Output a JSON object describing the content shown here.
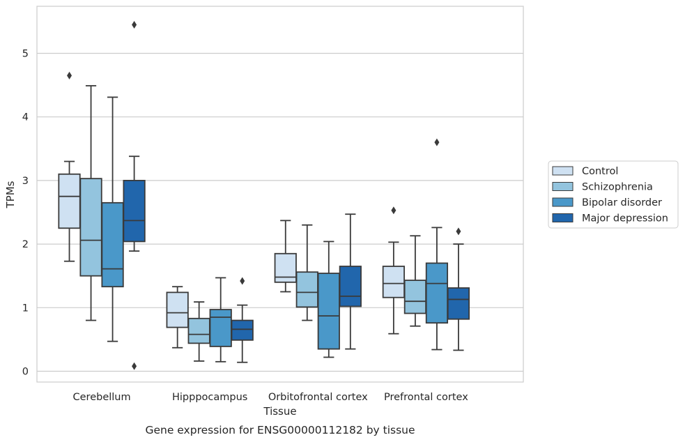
{
  "chart_data": {
    "type": "boxplot",
    "caption": "Gene expression for ENSG00000112182 by tissue",
    "xlabel": "Tissue",
    "ylabel": "TPMs",
    "ylim": [
      -0.17,
      5.74
    ],
    "yticks": [
      0,
      1,
      2,
      3,
      4,
      5
    ],
    "grid": "horizontal",
    "legend_placement": "right",
    "categories": [
      "Cerebellum",
      "Hipppocampus",
      "Orbitofrontal cortex",
      "Prefrontal cortex"
    ],
    "series": [
      {
        "name": "Control",
        "color": "#cfe1f2",
        "boxes": [
          {
            "whislo": 1.73,
            "q1": 2.25,
            "med": 2.75,
            "q3": 3.1,
            "whishi": 3.3,
            "fliers": [
              4.65
            ]
          },
          {
            "whislo": 0.37,
            "q1": 0.69,
            "med": 0.92,
            "q3": 1.24,
            "whishi": 1.33,
            "fliers": []
          },
          {
            "whislo": 1.25,
            "q1": 1.4,
            "med": 1.48,
            "q3": 1.85,
            "whishi": 2.37,
            "fliers": []
          },
          {
            "whislo": 0.59,
            "q1": 1.16,
            "med": 1.38,
            "q3": 1.65,
            "whishi": 2.03,
            "fliers": [
              2.53
            ]
          }
        ]
      },
      {
        "name": "Schizophrenia",
        "color": "#93c4de",
        "boxes": [
          {
            "whislo": 0.8,
            "q1": 1.5,
            "med": 2.06,
            "q3": 3.03,
            "whishi": 4.49,
            "fliers": []
          },
          {
            "whislo": 0.16,
            "q1": 0.44,
            "med": 0.58,
            "q3": 0.83,
            "whishi": 1.09,
            "fliers": []
          },
          {
            "whislo": 0.8,
            "q1": 1.01,
            "med": 1.24,
            "q3": 1.56,
            "whishi": 2.3,
            "fliers": []
          },
          {
            "whislo": 0.71,
            "q1": 0.91,
            "med": 1.1,
            "q3": 1.43,
            "whishi": 2.13,
            "fliers": []
          }
        ]
      },
      {
        "name": "Bipolar disorder",
        "color": "#4a98c9",
        "boxes": [
          {
            "whislo": 0.47,
            "q1": 1.33,
            "med": 1.61,
            "q3": 2.65,
            "whishi": 4.31,
            "fliers": []
          },
          {
            "whislo": 0.15,
            "q1": 0.39,
            "med": 0.85,
            "q3": 0.97,
            "whishi": 1.47,
            "fliers": []
          },
          {
            "whislo": 0.22,
            "q1": 0.35,
            "med": 0.87,
            "q3": 1.54,
            "whishi": 2.04,
            "fliers": []
          },
          {
            "whislo": 0.34,
            "q1": 0.76,
            "med": 1.38,
            "q3": 1.7,
            "whishi": 2.26,
            "fliers": [
              3.6
            ]
          }
        ]
      },
      {
        "name": "Major depression",
        "color": "#2166ac",
        "boxes": [
          {
            "whislo": 1.89,
            "q1": 2.04,
            "med": 2.37,
            "q3": 3.0,
            "whishi": 3.38,
            "fliers": [
              5.45,
              0.08
            ]
          },
          {
            "whislo": 0.14,
            "q1": 0.49,
            "med": 0.66,
            "q3": 0.8,
            "whishi": 1.04,
            "fliers": [
              1.42
            ]
          },
          {
            "whislo": 0.35,
            "q1": 1.02,
            "med": 1.18,
            "q3": 1.65,
            "whishi": 2.47,
            "fliers": []
          },
          {
            "whislo": 0.33,
            "q1": 0.82,
            "med": 1.13,
            "q3": 1.31,
            "whishi": 2.0,
            "fliers": [
              2.2
            ]
          }
        ]
      }
    ]
  }
}
